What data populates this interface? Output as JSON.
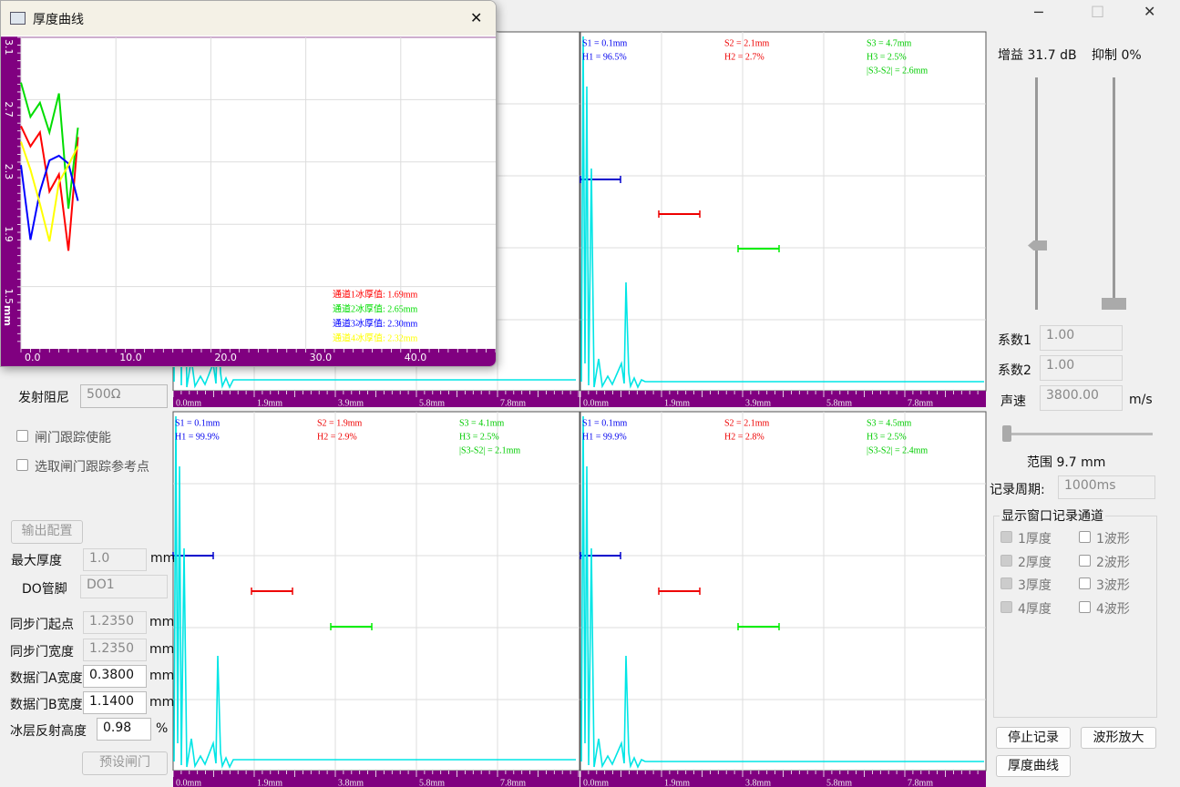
{
  "popup": {
    "title": "厚度曲线"
  },
  "chart_data": {
    "type": "line",
    "x": [
      0,
      1,
      2,
      3,
      4,
      5,
      6
    ],
    "series": [
      {
        "color": "#ff0000",
        "values": [
          2.53,
          2.4,
          2.49,
          2.11,
          2.22,
          1.73,
          2.46
        ]
      },
      {
        "color": "#00dd00",
        "values": [
          2.81,
          2.59,
          2.68,
          2.49,
          2.74,
          2.0,
          2.52
        ]
      },
      {
        "color": "#0000ff",
        "values": [
          2.28,
          1.8,
          2.11,
          2.31,
          2.34,
          2.29,
          2.05
        ]
      },
      {
        "color": "#ffff00",
        "values": [
          2.43,
          2.25,
          2.03,
          1.79,
          2.17,
          2.28,
          2.4
        ]
      }
    ],
    "xlim": [
      0,
      50
    ],
    "ylim": [
      1.1,
      3.1
    ],
    "xticks": [
      {
        "value": 0,
        "label": "0.0"
      },
      {
        "value": 10,
        "label": "10.0"
      },
      {
        "value": 20,
        "label": "20.0"
      },
      {
        "value": 30,
        "label": "30.0"
      },
      {
        "value": 40,
        "label": "40.0"
      }
    ],
    "yticks": [
      1.5,
      1.9,
      2.3,
      2.7,
      3.1
    ],
    "y_unit": "mm",
    "grid": true,
    "readouts": [
      "通道1冰厚值: 1.69mm",
      "通道2冰厚值: 2.65mm",
      "通道3冰厚值: 2.30mm",
      "通道4冰厚值: 2.32mm"
    ]
  },
  "panels": [
    {
      "axis_labels": [
        "0.0mm",
        "1.9mm",
        "3.9mm",
        "5.8mm",
        "7.8mm"
      ]
    },
    {
      "axis_labels": [
        "0.0mm",
        "1.9mm",
        "3.9mm",
        "5.8mm",
        "7.8mm"
      ],
      "readouts": [
        [
          "S1 = 0.1mm",
          "H1 = 96.5%"
        ],
        [
          "S2 = 2.1mm",
          "H2 = 2.7%"
        ],
        [
          "S3 = 4.7mm",
          "H3 = 2.5%",
          "|S3-S2| = 2.6mm"
        ]
      ]
    },
    {
      "axis_labels": [
        "0.0mm",
        "1.9mm",
        "3.8mm",
        "5.8mm",
        "7.8mm"
      ],
      "readouts": [
        [
          "S1 = 0.1mm",
          "H1 = 99.9%"
        ],
        [
          "S2 = 1.9mm",
          "H2 = 2.9%"
        ],
        [
          "S3 = 4.1mm",
          "H3 = 2.5%",
          "|S3-S2| = 2.1mm"
        ]
      ]
    },
    {
      "axis_labels": [
        "0.0mm",
        "1.9mm",
        "3.8mm",
        "5.8mm",
        "7.8mm"
      ],
      "readouts": [
        [
          "S1 = 0.1mm",
          "H1 = 99.9%"
        ],
        [
          "S2 = 2.1mm",
          "H2 = 2.8%"
        ],
        [
          "S3 = 4.5mm",
          "H3 = 2.5%",
          "|S3-S2| = 2.4mm"
        ]
      ]
    }
  ],
  "left_panel": {
    "damping": {
      "label": "发射阻尼",
      "value": "500Ω"
    },
    "gate_tracking": "闸门跟踪使能",
    "gate_reference": "选取闸门跟踪参考点",
    "output_config": "输出配置",
    "max_thickness": {
      "label": "最大厚度",
      "value": "1.0",
      "unit": "mm"
    },
    "do_pin": {
      "label": "DO管脚",
      "value": "DO1"
    },
    "fields": [
      {
        "label": "同步门起点",
        "value": "1.2350",
        "unit": "mm"
      },
      {
        "label": "同步门宽度",
        "value": "1.2350",
        "unit": "mm"
      },
      {
        "label": "数据门A宽度",
        "value": "0.3800",
        "unit": "mm"
      },
      {
        "label": "数据门B宽度",
        "value": "1.1400",
        "unit": "mm"
      },
      {
        "label": "冰层反射高度",
        "value": "0.98",
        "unit": "%"
      }
    ],
    "preset_gate": "预设闸门"
  },
  "right_panel": {
    "gain": "增益 31.7 dB",
    "suppress": "抑制 0%",
    "coef1": {
      "label": "系数1",
      "value": "1.00"
    },
    "coef2": {
      "label": "系数2",
      "value": "1.00"
    },
    "sound_speed": {
      "label": "声速",
      "value": "3800.00",
      "unit": "m/s"
    },
    "range": "范围 9.7 mm",
    "record_period": {
      "label": "记录周期:",
      "value": "1000ms"
    },
    "group_title": "显示窗口记录通道",
    "thickness_checks": [
      "1厚度",
      "2厚度",
      "3厚度",
      "4厚度"
    ],
    "wave_checks": [
      "1波形",
      "2波形",
      "3波形",
      "4波形"
    ],
    "buttons": [
      "停止记录",
      "波形放大",
      "厚度曲线"
    ]
  }
}
